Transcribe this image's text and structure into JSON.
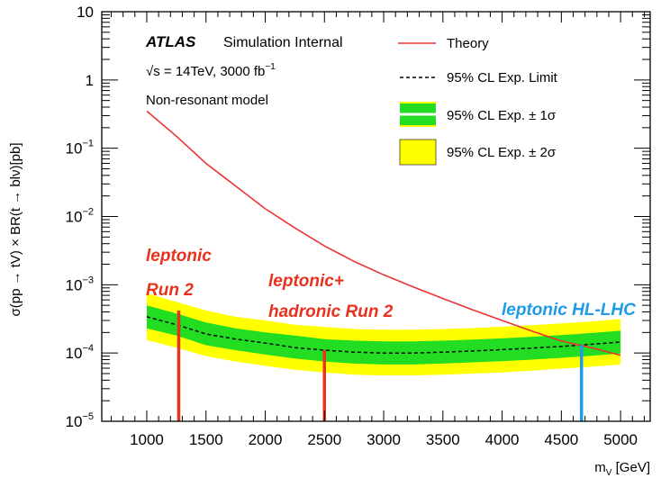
{
  "chart_data": {
    "type": "line",
    "xlabel": "m",
    "xlabel_sub": "V",
    "xlabel_unit": " [GeV]",
    "ylabel": "σ(pp → tV) × BR(t → blν)[pb]",
    "xlim": [
      620,
      5250
    ],
    "ylim": [
      1e-05,
      10
    ],
    "y_scale": "log",
    "x_ticks": [
      1000,
      1500,
      2000,
      2500,
      3000,
      3500,
      4000,
      4500,
      5000
    ],
    "y_ticks": [
      {
        "value": 10,
        "base": "10",
        "exp": ""
      },
      {
        "value": 1,
        "base": "1",
        "exp": ""
      },
      {
        "value": 0.1,
        "base": "10",
        "exp": "−1"
      },
      {
        "value": 0.01,
        "base": "10",
        "exp": "−2"
      },
      {
        "value": 0.001,
        "base": "10",
        "exp": "−3"
      },
      {
        "value": 0.0001,
        "base": "10",
        "exp": "−4"
      },
      {
        "value": 1e-05,
        "base": "10",
        "exp": "−5"
      }
    ],
    "grid": false,
    "legend_position": "top-right",
    "labels": {
      "atlas": "ATLAS",
      "internal": "Simulation Internal",
      "energy": "√s = 14TeV, 3000 fb",
      "energy_sup": "−1",
      "model": "Non-resonant model"
    },
    "theory": {
      "name": "Theory",
      "color": "#ee3333",
      "x": [
        1000,
        1250,
        1500,
        1750,
        2000,
        2250,
        2500,
        2750,
        3000,
        3250,
        3500,
        3750,
        4000,
        4250,
        4500,
        4750,
        5000
      ],
      "y": [
        0.35,
        0.15,
        0.06,
        0.028,
        0.013,
        0.0068,
        0.0037,
        0.0022,
        0.0014,
        0.00093,
        0.00063,
        0.00043,
        0.0003,
        0.00021,
        0.00015,
        0.00012,
        9.3e-05
      ]
    },
    "expected": {
      "name": "95% CL Exp. Limit",
      "x": [
        1000,
        1250,
        1500,
        1750,
        2000,
        2250,
        2500,
        2750,
        3000,
        3250,
        3500,
        3750,
        4000,
        4250,
        4500,
        4750,
        5000
      ],
      "y": [
        0.00034,
        0.00026,
        0.00019,
        0.00016,
        0.00014,
        0.00012,
        0.00011,
        0.000103,
        0.0001,
        0.0001,
        0.000103,
        0.000107,
        0.000112,
        0.000118,
        0.000125,
        0.000134,
        0.000145
      ]
    },
    "band1": {
      "name": "95% CL Exp. ± 1σ",
      "color": "#22dd22",
      "lower": [
        0.00023,
        0.00018,
        0.00013,
        0.00011,
        9.5e-05,
        8.3e-05,
        7.5e-05,
        7e-05,
        6.8e-05,
        6.8e-05,
        7e-05,
        7.3e-05,
        7.6e-05,
        8e-05,
        8.5e-05,
        9.1e-05,
        9.8e-05
      ],
      "upper": [
        0.0005,
        0.00038,
        0.00028,
        0.00023,
        0.0002,
        0.00018,
        0.00016,
        0.000152,
        0.000148,
        0.000148,
        0.000152,
        0.000157,
        0.000164,
        0.000173,
        0.000183,
        0.000196,
        0.000212
      ]
    },
    "band2": {
      "name": "95% CL Exp. ± 2σ",
      "color": "#ffff00",
      "lower": [
        0.000155,
        0.00012,
        9e-05,
        7.5e-05,
        6.5e-05,
        5.7e-05,
        5.2e-05,
        4.8e-05,
        4.7e-05,
        4.7e-05,
        4.8e-05,
        5e-05,
        5.2e-05,
        5.5e-05,
        5.9e-05,
        6.3e-05,
        6.8e-05
      ],
      "upper": [
        0.00075,
        0.00056,
        0.00042,
        0.00034,
        0.0003,
        0.00026,
        0.00024,
        0.000225,
        0.00022,
        0.00022,
        0.000225,
        0.000232,
        0.000243,
        0.000256,
        0.000272,
        0.00029,
        0.000315
      ]
    },
    "annotations": [
      {
        "lines": [
          "leptonic",
          "Run 2"
        ],
        "color": "#e8321e",
        "x": 1270,
        "y_top": 0.00042
      },
      {
        "lines": [
          "leptonic+",
          "hadronic Run 2"
        ],
        "color": "#e8321e",
        "x": 2500,
        "y_top": 0.00011
      },
      {
        "lines": [
          "leptonic HL-LHC"
        ],
        "color": "#1e9be8",
        "x": 4670,
        "y_top": 0.00013
      }
    ]
  }
}
